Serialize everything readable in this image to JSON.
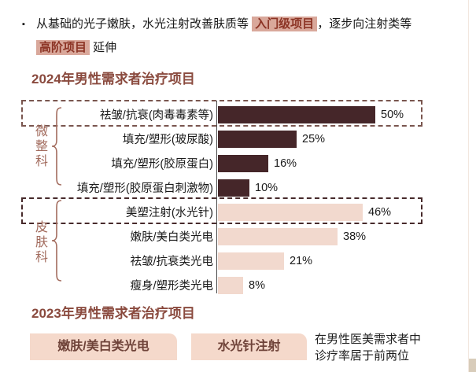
{
  "colors": {
    "bar_dark": "#452629",
    "bar_light": "#F2D9CE",
    "hl_bg": "#D9A89B",
    "hl_text": "#8C3425",
    "title_color": "#8A4A3E",
    "group_accent": "#A26B5D",
    "dash1": "#7A564F",
    "dash2": "#472A2B",
    "tag_bg": "#F5D9CB",
    "tag_text": "#6F4339",
    "edge_line": "#F2E7DF",
    "corner_block": "#D8CCBA"
  },
  "intro": {
    "bullet": "▪",
    "line1": {
      "pre": "从基础的光子嫩肤，水光注射改善肤质等 ",
      "highlight": "入门级项目",
      "post": "，逐步向注射类等"
    },
    "line2": {
      "highlight": "高阶项目",
      "post": " 延伸"
    }
  },
  "chart_data": {
    "type": "bar",
    "orientation": "horizontal",
    "title": "2024年男性需求者治疗项目",
    "unit": "%",
    "xlim": [
      0,
      55
    ],
    "value_labels": true,
    "grid": false,
    "legend": false,
    "groups": [
      {
        "name": "微整科",
        "color_key": "bar_dark",
        "items": [
          {
            "label": "祛皱/抗衰(肉毒毒素等)",
            "value": 50,
            "boxed": true
          },
          {
            "label": "填充/塑形(玻尿酸)",
            "value": 25,
            "boxed": false
          },
          {
            "label": "填充/塑形(胶原蛋白)",
            "value": 16,
            "boxed": false
          },
          {
            "label": "填充/塑形(胶原蛋白刺激物)",
            "value": 10,
            "boxed": false
          }
        ]
      },
      {
        "name": "皮肤科",
        "color_key": "bar_light",
        "items": [
          {
            "label": "美塑注射(水光针)",
            "value": 46,
            "boxed": true
          },
          {
            "label": "嫩肤/美白类光电",
            "value": 38,
            "boxed": false
          },
          {
            "label": "祛皱/抗衰类光电",
            "value": 21,
            "boxed": false
          },
          {
            "label": "瘦身/塑形类光电",
            "value": 8,
            "boxed": false
          }
        ]
      }
    ]
  },
  "section_2023": {
    "title": "2023年男性需求者治疗项目",
    "tags": [
      {
        "label": "嫩肤/美白类光电"
      },
      {
        "label": "水光针注射"
      }
    ],
    "note": {
      "line1": "在男性医美需求者中",
      "line2": "诊疗率居于前两位"
    }
  }
}
